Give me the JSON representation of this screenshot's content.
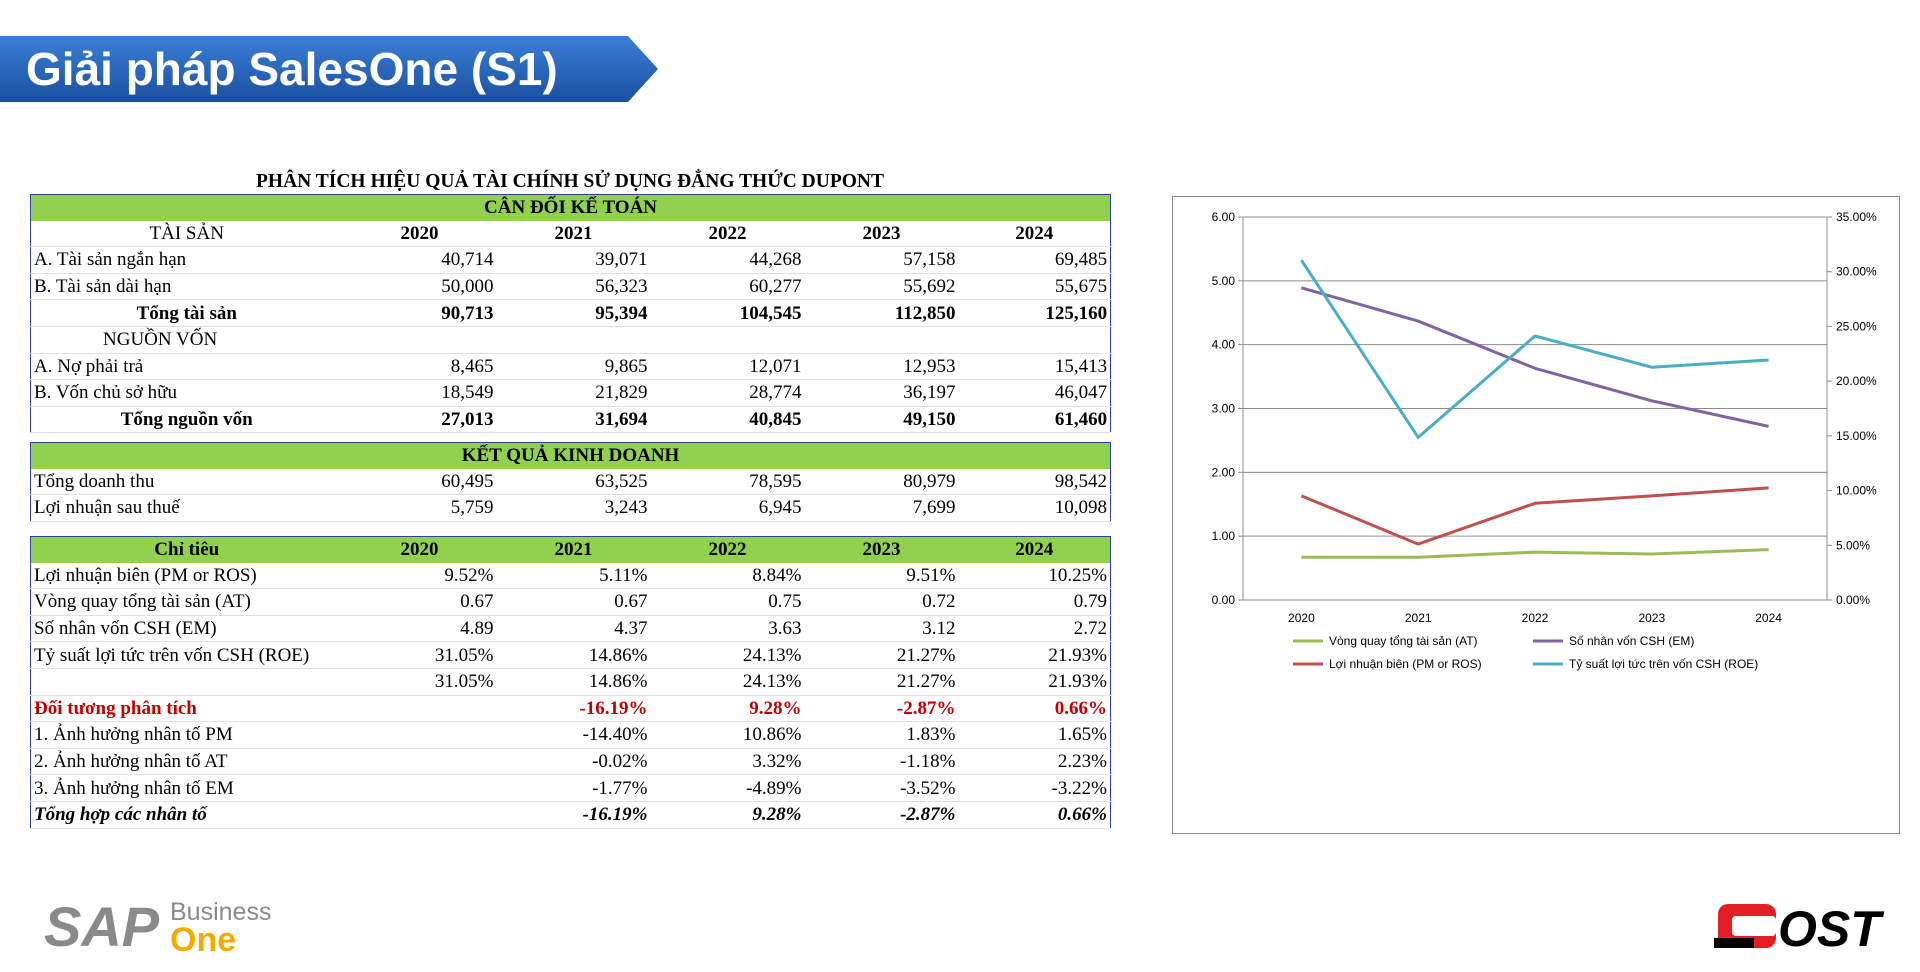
{
  "header": {
    "title": "Giải pháp SalesOne (S1)"
  },
  "sheet": {
    "title": "PHÂN TÍCH HIỆU QUẢ TÀI CHÍNH SỬ DỤNG ĐẲNG THỨC DUPONT",
    "balance": {
      "section_title": "CÂN ĐỐI KẾ TOÁN",
      "assets_header": "TÀI SẢN",
      "years": [
        "2020",
        "2021",
        "2022",
        "2023",
        "2024"
      ],
      "rows": [
        {
          "label": "A. Tài sản ngắn hạn",
          "values": [
            "40,714",
            "39,071",
            "44,268",
            "57,158",
            "69,485"
          ]
        },
        {
          "label": "B. Tài sản dài hạn",
          "values": [
            "50,000",
            "56,323",
            "60,277",
            "55,692",
            "55,675"
          ]
        },
        {
          "label": "Tổng tài sản",
          "values": [
            "90,713",
            "95,394",
            "104,545",
            "112,850",
            "125,160"
          ]
        },
        {
          "label": "NGUỒN VỐN",
          "values": [
            "",
            "",
            "",
            "",
            ""
          ]
        },
        {
          "label": "A. Nợ phải trả",
          "values": [
            "8,465",
            "9,865",
            "12,071",
            "12,953",
            "15,413"
          ]
        },
        {
          "label": "B. Vốn chủ sở hữu",
          "values": [
            "18,549",
            "21,829",
            "28,774",
            "36,197",
            "46,047"
          ]
        },
        {
          "label": "Tổng nguồn vốn",
          "values": [
            "27,013",
            "31,694",
            "40,845",
            "49,150",
            "61,460"
          ]
        }
      ]
    },
    "income": {
      "section_title": "KẾT QUẢ KINH DOANH",
      "rows": [
        {
          "label": "Tổng doanh thu",
          "values": [
            "60,495",
            "63,525",
            "78,595",
            "80,979",
            "98,542"
          ]
        },
        {
          "label": "Lợi nhuận sau thuế",
          "values": [
            "5,759",
            "3,243",
            "6,945",
            "7,699",
            "10,098"
          ]
        }
      ]
    },
    "ratios": {
      "header_label": "Chỉ tiêu",
      "years": [
        "2020",
        "2021",
        "2022",
        "2023",
        "2024"
      ],
      "rows": [
        {
          "label": "Lợi nhuận biên (PM or ROS)",
          "values": [
            "9.52%",
            "5.11%",
            "8.84%",
            "9.51%",
            "10.25%"
          ]
        },
        {
          "label": "Vòng quay tổng tài sản (AT)",
          "values": [
            "0.67",
            "0.67",
            "0.75",
            "0.72",
            "0.79"
          ]
        },
        {
          "label": "Số nhân vốn CSH (EM)",
          "values": [
            "4.89",
            "4.37",
            "3.63",
            "3.12",
            "2.72"
          ]
        },
        {
          "label": "Tỷ suất lợi tức trên vốn CSH (ROE)",
          "values": [
            "31.05%",
            "14.86%",
            "24.13%",
            "21.27%",
            "21.93%"
          ]
        },
        {
          "label": "",
          "values": [
            "31.05%",
            "14.86%",
            "24.13%",
            "21.27%",
            "21.93%"
          ]
        },
        {
          "label": "Đối tương phân tích",
          "values": [
            "",
            "-16.19%",
            "9.28%",
            "-2.87%",
            "0.66%"
          ]
        },
        {
          "label": "1. Ảnh hưởng nhân tố PM",
          "values": [
            "",
            "-14.40%",
            "10.86%",
            "1.83%",
            "1.65%"
          ]
        },
        {
          "label": "2. Ảnh hưởng nhân tố AT",
          "values": [
            "",
            "-0.02%",
            "3.32%",
            "-1.18%",
            "2.23%"
          ]
        },
        {
          "label": "3. Ảnh hưởng nhân tố EM",
          "values": [
            "",
            "-1.77%",
            "-4.89%",
            "-3.52%",
            "-3.22%"
          ]
        },
        {
          "label": "Tổng hợp các nhân tố",
          "values": [
            "",
            "-16.19%",
            "9.28%",
            "-2.87%",
            "0.66%"
          ]
        }
      ]
    }
  },
  "chart_data": {
    "type": "line",
    "x": [
      "2020",
      "2021",
      "2022",
      "2023",
      "2024"
    ],
    "y_left": {
      "range": [
        0,
        6
      ],
      "ticks": [
        "0.00",
        "1.00",
        "2.00",
        "3.00",
        "4.00",
        "5.00",
        "6.00"
      ]
    },
    "y_right": {
      "range": [
        0,
        35
      ],
      "ticks": [
        "0.00%",
        "5.00%",
        "10.00%",
        "15.00%",
        "20.00%",
        "25.00%",
        "30.00%",
        "35.00%"
      ]
    },
    "grid": true,
    "legend_position": "bottom",
    "series": [
      {
        "name": "Vòng quay tổng tài sản (AT)",
        "axis": "left",
        "color": "#9bbb59",
        "values": [
          0.67,
          0.67,
          0.75,
          0.72,
          0.79
        ]
      },
      {
        "name": "Số nhân vốn CSH (EM)",
        "axis": "left",
        "color": "#8064a2",
        "values": [
          4.89,
          4.37,
          3.63,
          3.12,
          2.72
        ]
      },
      {
        "name": "Lợi nhuận biên (PM or ROS)",
        "axis": "right",
        "color": "#c0504d",
        "values": [
          9.52,
          5.11,
          8.84,
          9.51,
          10.25
        ]
      },
      {
        "name": "Tỷ suất lợi tức trên vốn CSH (ROE)",
        "axis": "right",
        "color": "#4bacc6",
        "values": [
          31.05,
          14.86,
          24.13,
          21.27,
          21.93
        ]
      }
    ]
  },
  "logos": {
    "sap": {
      "line1": "SAP",
      "line2": "Business",
      "line3": "One"
    },
    "ost": {
      "text": "OST"
    }
  },
  "colors": {
    "banner": "#1f5fb4",
    "section_green": "#92d050",
    "negative_red": "#c00000",
    "table_border": "#2f3f9f"
  }
}
